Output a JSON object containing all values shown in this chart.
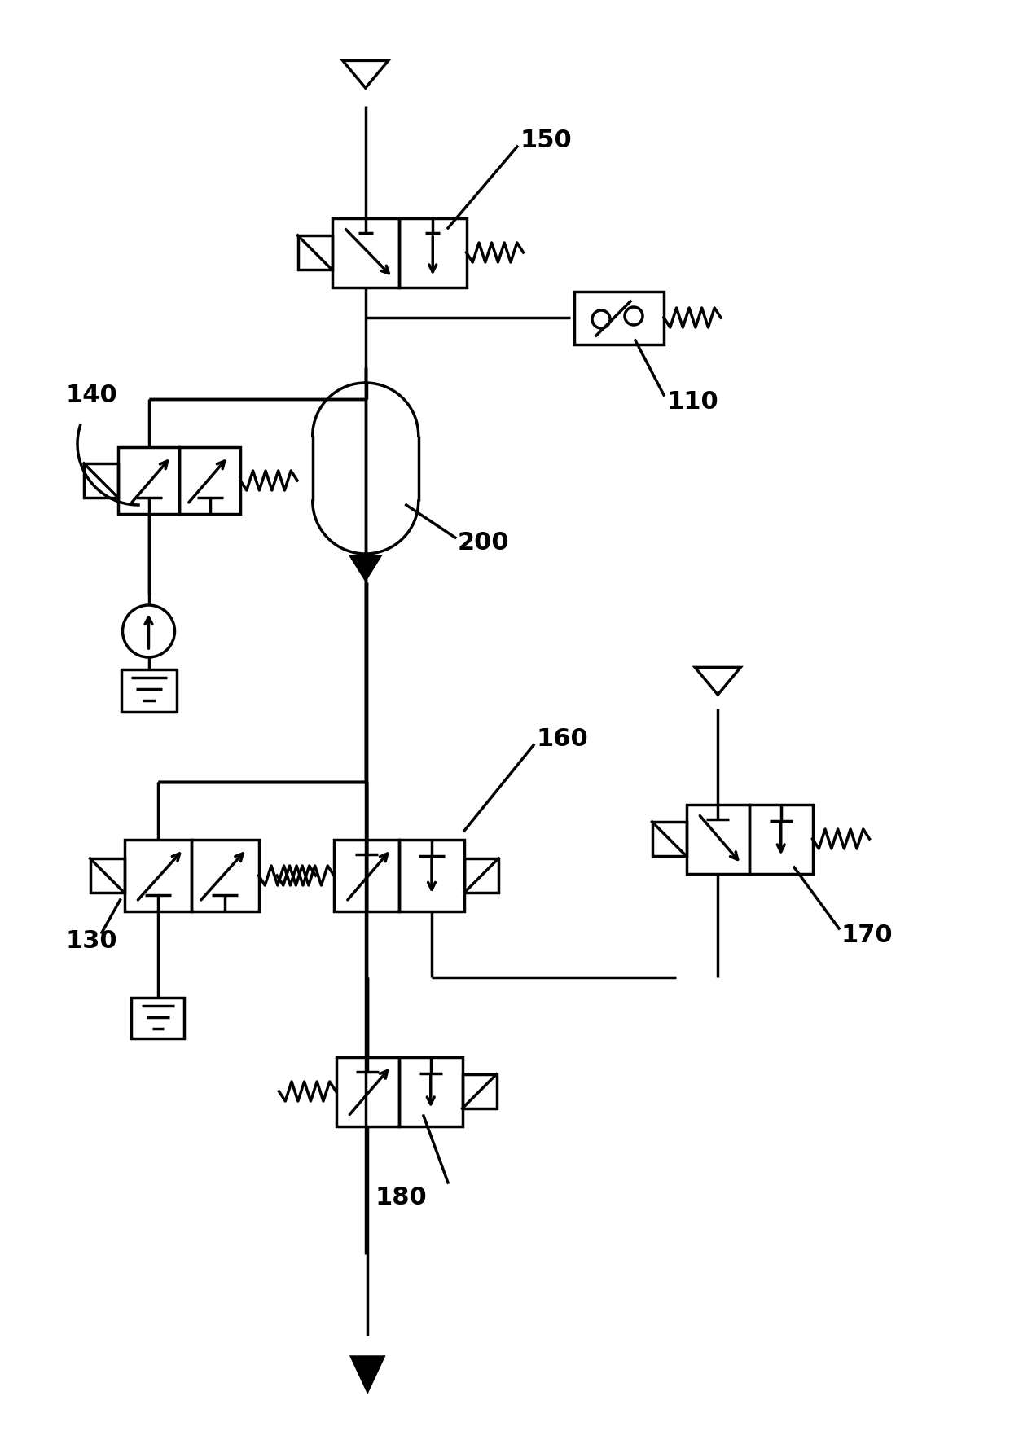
{
  "bg": "#ffffff",
  "lc": "#000000",
  "lw": 2.5,
  "fs": 22,
  "fig_w": 12.4,
  "fig_h": 17.73,
  "dpi": 100
}
